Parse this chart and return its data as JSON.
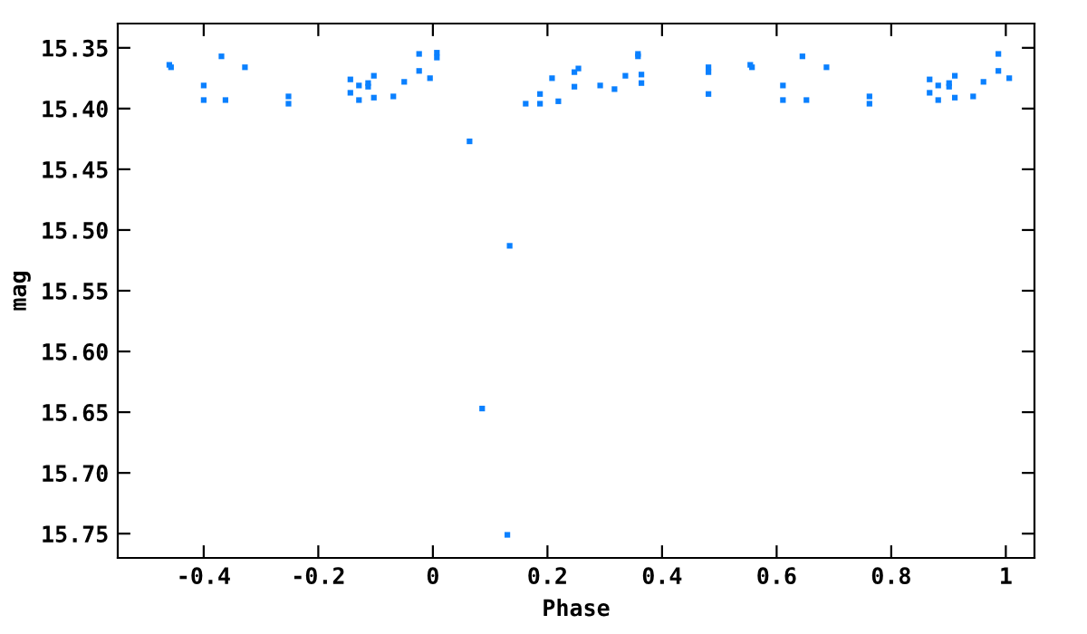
{
  "chart_data": {
    "type": "scatter",
    "xlabel": "Phase",
    "ylabel": "mag",
    "xlim": [
      -0.55,
      1.05
    ],
    "ylim": [
      15.77,
      15.33
    ],
    "xticks": [
      {
        "value": -0.4,
        "label": "-0.4"
      },
      {
        "value": -0.2,
        "label": "-0.2"
      },
      0,
      0.2,
      0.4,
      0.6,
      0.8,
      1
    ],
    "yticks": [
      15.35,
      {
        "value": 15.4,
        "label": "15.40"
      },
      15.45,
      {
        "value": 15.5,
        "label": "15.50"
      },
      15.55,
      {
        "value": 15.6,
        "label": "15.60"
      },
      15.65,
      {
        "value": 15.7,
        "label": "15.70"
      },
      15.75
    ],
    "marker": "square",
    "grid": false,
    "legend": false,
    "series": [
      {
        "color": "#0a80ff",
        "x": [
          -0.46,
          -0.457,
          -0.4,
          -0.4,
          -0.369,
          -0.362,
          -0.328,
          -0.252,
          -0.252,
          -0.144,
          -0.144,
          -0.129,
          -0.129,
          -0.113,
          -0.113,
          -0.103,
          -0.103,
          -0.069,
          -0.05,
          -0.024,
          -0.024,
          -0.005,
          0.007,
          0.007,
          0.064,
          0.086,
          0.13,
          0.134,
          0.162,
          0.187,
          0.187,
          0.208,
          0.219,
          0.247,
          0.247,
          0.254,
          0.292,
          0.317,
          0.336,
          0.358,
          0.358,
          0.364,
          0.364,
          0.481,
          0.481,
          0.481,
          0.554,
          0.557,
          0.611,
          0.611,
          0.645,
          0.652,
          0.687,
          0.762,
          0.762,
          0.867,
          0.867,
          0.882,
          0.882,
          0.901,
          0.901,
          0.911,
          0.911,
          0.943,
          0.961,
          0.987,
          0.987,
          1.006
        ],
        "values": [
          15.364,
          15.366,
          15.381,
          15.393,
          15.357,
          15.393,
          15.366,
          15.39,
          15.396,
          15.376,
          15.387,
          15.381,
          15.393,
          15.379,
          15.382,
          15.373,
          15.391,
          15.39,
          15.378,
          15.355,
          15.369,
          15.375,
          15.354,
          15.358,
          15.427,
          15.647,
          15.751,
          15.513,
          15.396,
          15.388,
          15.396,
          15.375,
          15.394,
          15.37,
          15.382,
          15.367,
          15.381,
          15.384,
          15.373,
          15.355,
          15.357,
          15.372,
          15.379,
          15.366,
          15.37,
          15.388,
          15.364,
          15.366,
          15.381,
          15.393,
          15.357,
          15.393,
          15.366,
          15.39,
          15.396,
          15.376,
          15.387,
          15.381,
          15.393,
          15.379,
          15.382,
          15.373,
          15.391,
          15.39,
          15.378,
          15.355,
          15.369,
          15.375
        ]
      }
    ]
  }
}
